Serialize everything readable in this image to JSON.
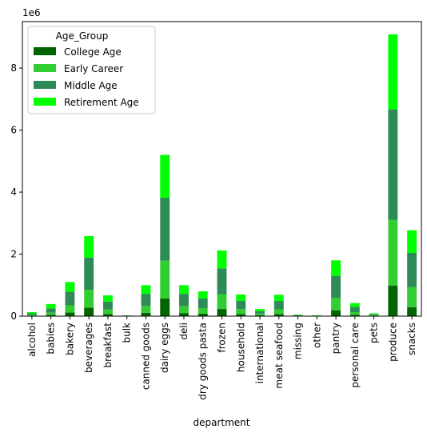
{
  "chart_data": {
    "type": "bar",
    "stacked": true,
    "xlabel": "department",
    "ylabel": "",
    "y_scale_label": "1e6",
    "ylim": [
      0,
      9.5
    ],
    "yticks": [
      0,
      2,
      4,
      6,
      8
    ],
    "grid": false,
    "legend": {
      "title": "Age_Group",
      "placement": "top-left"
    },
    "categories": [
      "alcohol",
      "babies",
      "bakery",
      "beverages",
      "breakfast",
      "bulk",
      "canned goods",
      "dairy eggs",
      "deli",
      "dry goods pasta",
      "frozen",
      "household",
      "international",
      "meat seafood",
      "missing",
      "other",
      "pantry",
      "personal care",
      "pets",
      "produce",
      "snacks"
    ],
    "series": [
      {
        "name": "College Age",
        "color": "#006400",
        "values": [
          0.02,
          0.04,
          0.12,
          0.27,
          0.07,
          0.005,
          0.11,
          0.57,
          0.1,
          0.08,
          0.23,
          0.07,
          0.03,
          0.07,
          0.005,
          0.005,
          0.19,
          0.04,
          0.01,
          0.99,
          0.29
        ]
      },
      {
        "name": "Early Career",
        "color": "#32CD32",
        "values": [
          0.03,
          0.07,
          0.23,
          0.58,
          0.15,
          0.005,
          0.22,
          1.22,
          0.22,
          0.18,
          0.48,
          0.16,
          0.05,
          0.15,
          0.01,
          0.005,
          0.4,
          0.09,
          0.02,
          2.12,
          0.65
        ]
      },
      {
        "name": "Middle Age",
        "color": "#2E8B57",
        "values": [
          0.04,
          0.14,
          0.44,
          1.04,
          0.25,
          0.01,
          0.39,
          2.03,
          0.4,
          0.31,
          0.83,
          0.26,
          0.08,
          0.27,
          0.02,
          0.01,
          0.71,
          0.17,
          0.03,
          3.56,
          1.1
        ]
      },
      {
        "name": "Retirement Age",
        "color": "#00FF00",
        "values": [
          0.04,
          0.14,
          0.31,
          0.69,
          0.2,
          0.005,
          0.28,
          1.38,
          0.28,
          0.23,
          0.58,
          0.21,
          0.07,
          0.2,
          0.015,
          0.01,
          0.5,
          0.12,
          0.03,
          2.42,
          0.73
        ]
      }
    ]
  }
}
